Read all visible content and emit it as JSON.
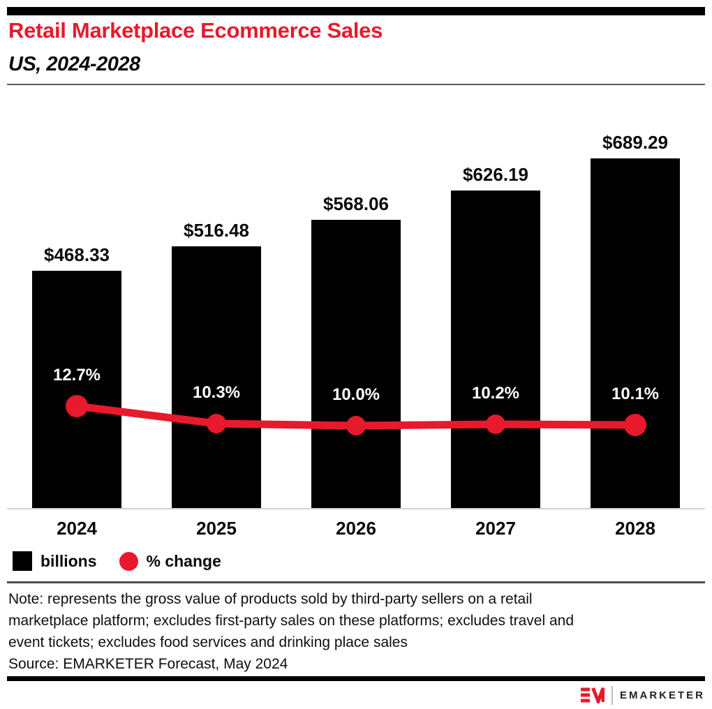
{
  "header": {
    "title": "Retail Marketplace Ecommerce Sales",
    "subtitle": "US, 2024-2028"
  },
  "chart_data": {
    "type": "bar",
    "categories": [
      "2024",
      "2025",
      "2026",
      "2027",
      "2028"
    ],
    "series": [
      {
        "name": "billions",
        "type": "bar",
        "values": [
          468.33,
          516.48,
          568.06,
          626.19,
          689.29
        ],
        "labels": [
          "$468.33",
          "$516.48",
          "$568.06",
          "$626.19",
          "$689.29"
        ],
        "color": "#000000"
      },
      {
        "name": "% change",
        "type": "line",
        "values": [
          12.7,
          10.3,
          10.0,
          10.2,
          10.1
        ],
        "labels": [
          "12.7%",
          "10.3%",
          "10.0%",
          "10.2%",
          "10.1%"
        ],
        "color": "#e8192c"
      }
    ],
    "title": "Retail Marketplace Ecommerce Sales",
    "subtitle": "US, 2024-2028",
    "xlabel": "",
    "ylabel": "",
    "legend_position": "bottom-left",
    "grid": false
  },
  "legend": {
    "items": [
      {
        "label": "billions",
        "swatch": "square",
        "color": "#000000"
      },
      {
        "label": "% change",
        "swatch": "circle",
        "color": "#e8192c"
      }
    ]
  },
  "note": {
    "lines": [
      "Note: represents the gross value of products sold by third-party sellers on a retail",
      "marketplace platform; excludes first-party sales on these platforms; excludes travel and",
      "event tickets; excludes food services and drinking place sales"
    ]
  },
  "source": "Source: EMARKETER Forecast, May 2024",
  "footer": {
    "brand": "EMARKETER"
  },
  "colors": {
    "accent_red": "#e8192c",
    "bar_black": "#000000",
    "axis_line": "#c9d3e3",
    "divider_gray": "#58595b"
  }
}
